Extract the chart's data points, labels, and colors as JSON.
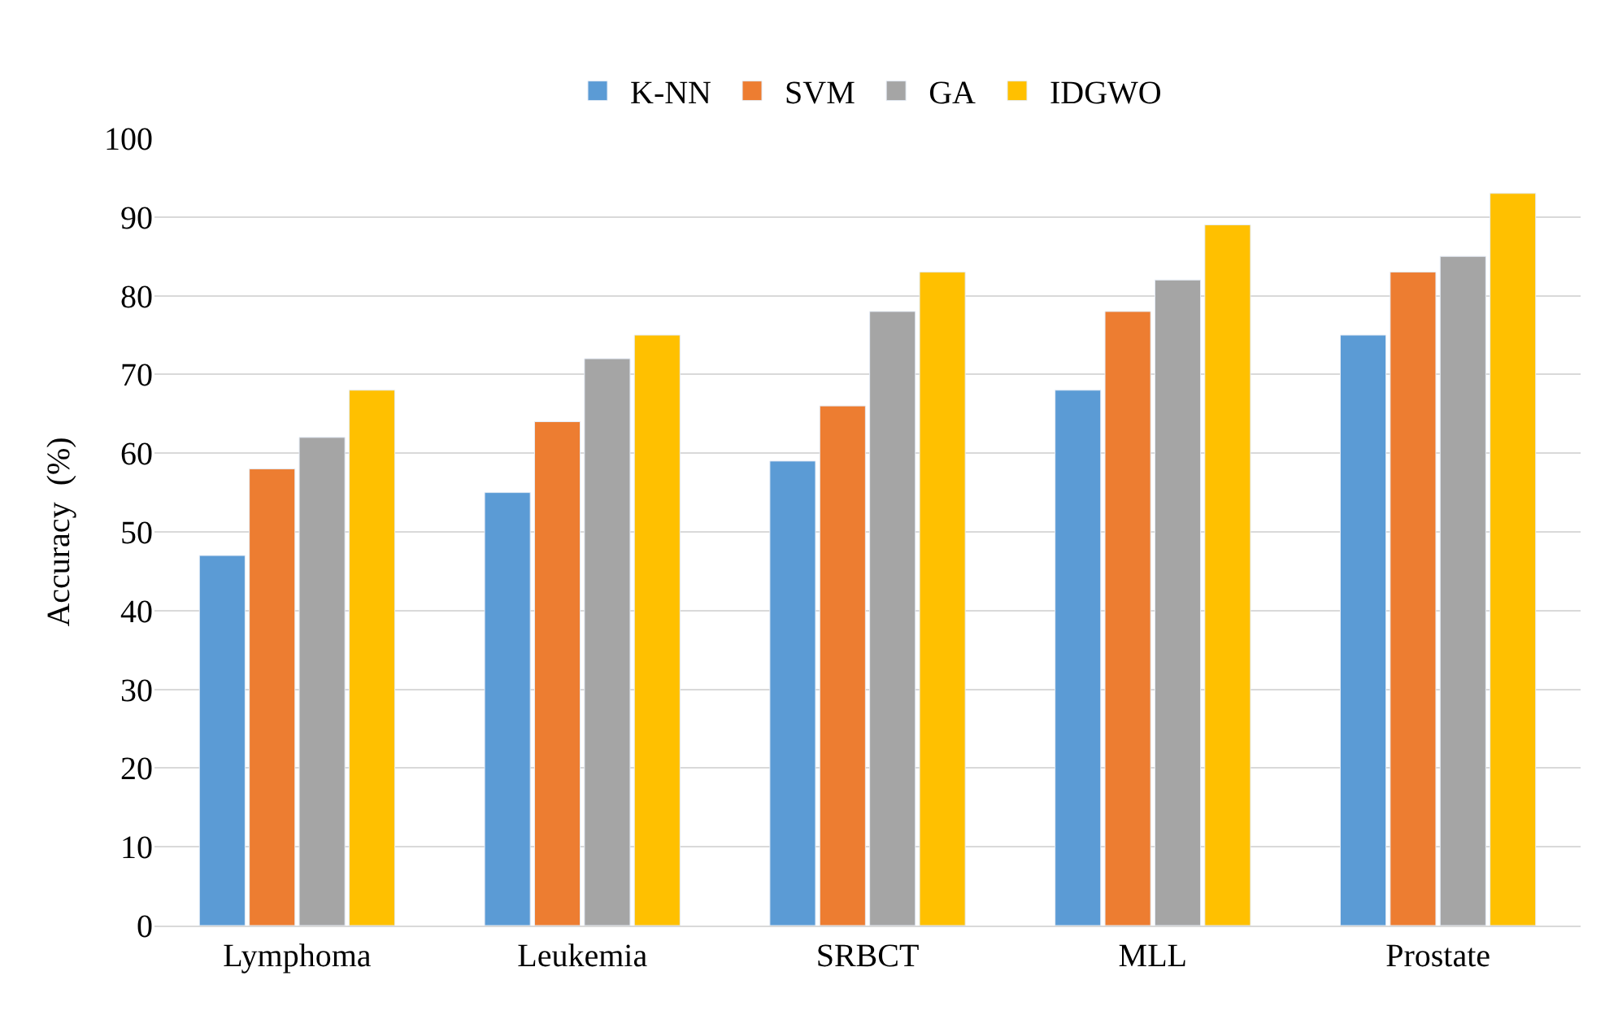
{
  "chart_data": {
    "type": "bar",
    "ylabel": "Accuracy  (%)",
    "categories": [
      "Lymphoma",
      "Leukemia",
      "SRBCT",
      "MLL",
      "Prostate"
    ],
    "series": [
      {
        "name": "K-NN",
        "color": "#5b9bd5",
        "values": [
          47,
          55,
          59,
          68,
          75
        ]
      },
      {
        "name": "SVM",
        "color": "#ed7d31",
        "values": [
          58,
          64,
          66,
          78,
          83
        ]
      },
      {
        "name": "GA",
        "color": "#a5a5a5",
        "values": [
          62,
          72,
          78,
          82,
          85
        ]
      },
      {
        "name": "IDGWO",
        "color": "#ffc000",
        "values": [
          68,
          75,
          83,
          89,
          93
        ]
      }
    ],
    "ylim": [
      0,
      100
    ],
    "yticks": [
      0,
      10,
      20,
      30,
      40,
      50,
      60,
      70,
      80,
      90,
      100
    ],
    "grid": "y",
    "legend": "top"
  }
}
